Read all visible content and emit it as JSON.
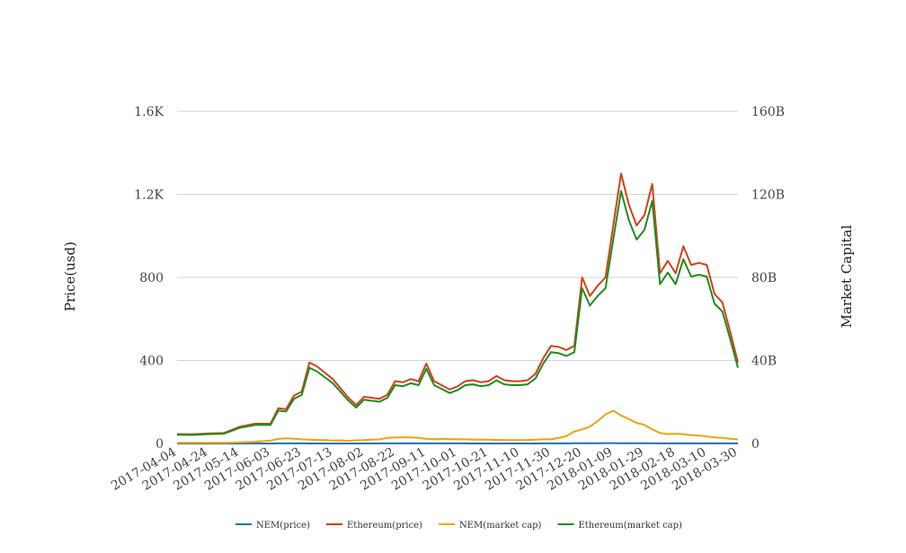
{
  "chart_data": {
    "type": "line",
    "xlabel": "",
    "ylabel": "Price(usd)",
    "y2label": "Market Capital",
    "ylim": [
      0,
      1600
    ],
    "y2lim": [
      0,
      160
    ],
    "grid": true,
    "legend_position": "bottom",
    "x_ticks": [
      "2017-04-04",
      "2017-04-24",
      "2017-05-14",
      "2017-06-03",
      "2017-06-23",
      "2017-07-13",
      "2017-08-02",
      "2017-08-22",
      "2017-09-11",
      "2017-10-01",
      "2017-10-21",
      "2017-11-10",
      "2017-11-30",
      "2017-12-20",
      "2018-01-09",
      "2018-01-29",
      "2018-02-18",
      "2018-03-10",
      "2018-03-30"
    ],
    "y_ticks": [
      "0",
      "400",
      "800",
      "1.2K",
      "1.6K"
    ],
    "y2_ticks": [
      "0",
      "40B",
      "80B",
      "120B",
      "160B"
    ],
    "x": [
      "2017-04-04",
      "2017-04-14",
      "2017-04-24",
      "2017-05-04",
      "2017-05-14",
      "2017-05-24",
      "2017-06-03",
      "2017-06-08",
      "2017-06-13",
      "2017-06-18",
      "2017-06-23",
      "2017-06-28",
      "2017-07-03",
      "2017-07-08",
      "2017-07-13",
      "2017-07-18",
      "2017-07-23",
      "2017-07-28",
      "2017-08-02",
      "2017-08-07",
      "2017-08-12",
      "2017-08-17",
      "2017-08-22",
      "2017-08-27",
      "2017-09-01",
      "2017-09-06",
      "2017-09-11",
      "2017-09-16",
      "2017-09-21",
      "2017-09-26",
      "2017-10-01",
      "2017-10-06",
      "2017-10-11",
      "2017-10-16",
      "2017-10-21",
      "2017-10-26",
      "2017-10-31",
      "2017-11-05",
      "2017-11-10",
      "2017-11-15",
      "2017-11-20",
      "2017-11-25",
      "2017-11-30",
      "2017-12-05",
      "2017-12-10",
      "2017-12-15",
      "2017-12-20",
      "2017-12-25",
      "2017-12-30",
      "2018-01-04",
      "2018-01-09",
      "2018-01-14",
      "2018-01-19",
      "2018-01-24",
      "2018-01-29",
      "2018-02-03",
      "2018-02-08",
      "2018-02-13",
      "2018-02-18",
      "2018-02-23",
      "2018-02-28",
      "2018-03-05",
      "2018-03-10",
      "2018-03-15",
      "2018-03-20",
      "2018-03-25",
      "2018-03-30"
    ],
    "series": [
      {
        "name": "NEM(price)",
        "color": "#1f6fbf",
        "axis": "left",
        "values": [
          0.03,
          0.03,
          0.03,
          0.03,
          0.05,
          0.08,
          0.15,
          0.25,
          0.3,
          0.28,
          0.22,
          0.2,
          0.19,
          0.18,
          0.15,
          0.16,
          0.14,
          0.17,
          0.18,
          0.2,
          0.22,
          0.3,
          0.32,
          0.34,
          0.33,
          0.3,
          0.25,
          0.23,
          0.25,
          0.24,
          0.22,
          0.22,
          0.21,
          0.2,
          0.2,
          0.19,
          0.19,
          0.18,
          0.18,
          0.19,
          0.2,
          0.22,
          0.22,
          0.3,
          0.4,
          0.65,
          0.75,
          0.9,
          1.2,
          1.55,
          1.75,
          1.5,
          1.3,
          1.1,
          1.0,
          0.75,
          0.55,
          0.5,
          0.52,
          0.5,
          0.45,
          0.42,
          0.38,
          0.32,
          0.3,
          0.26,
          0.22
        ]
      },
      {
        "name": "Ethereum(price)",
        "color": "#d43f1a",
        "axis": "left",
        "values": [
          45,
          44,
          48,
          50,
          80,
          95,
          95,
          170,
          165,
          230,
          250,
          390,
          370,
          340,
          310,
          265,
          220,
          185,
          225,
          220,
          215,
          235,
          300,
          295,
          310,
          300,
          385,
          300,
          280,
          260,
          275,
          300,
          305,
          295,
          300,
          325,
          305,
          300,
          300,
          305,
          335,
          410,
          470,
          465,
          450,
          470,
          800,
          710,
          760,
          800,
          1050,
          1300,
          1150,
          1050,
          1100,
          1250,
          820,
          880,
          820,
          950,
          860,
          870,
          860,
          720,
          680,
          540,
          390
        ]
      },
      {
        "name": "NEM(market cap)",
        "color": "#f0a30a",
        "axis": "right",
        "values": [
          0.3,
          0.3,
          0.3,
          0.3,
          0.5,
          0.8,
          1.4,
          2.2,
          2.5,
          2.3,
          2.0,
          1.8,
          1.7,
          1.6,
          1.4,
          1.5,
          1.3,
          1.5,
          1.6,
          1.8,
          2.0,
          2.7,
          2.9,
          3.0,
          2.9,
          2.7,
          2.2,
          2.0,
          2.2,
          2.1,
          2.0,
          2.0,
          1.9,
          1.8,
          1.8,
          1.7,
          1.7,
          1.6,
          1.6,
          1.7,
          1.8,
          2.0,
          2.0,
          2.7,
          3.6,
          5.8,
          6.8,
          8.1,
          10.8,
          14.0,
          15.8,
          13.5,
          11.7,
          9.9,
          9.0,
          6.8,
          5.0,
          4.5,
          4.7,
          4.5,
          4.0,
          3.8,
          3.4,
          2.9,
          2.7,
          2.3,
          2.0
        ]
      },
      {
        "name": "Ethereum(market cap)",
        "color": "#1e8c1e",
        "axis": "right",
        "values": [
          4.2,
          4.1,
          4.5,
          4.7,
          7.5,
          8.9,
          8.9,
          15.9,
          15.4,
          21.5,
          23.4,
          36.5,
          34.6,
          31.8,
          29.0,
          24.8,
          20.6,
          17.3,
          21.1,
          20.6,
          20.1,
          22.0,
          28.1,
          27.6,
          29.0,
          28.1,
          36.0,
          28.1,
          26.2,
          24.3,
          25.7,
          28.1,
          28.5,
          27.6,
          28.1,
          30.4,
          28.5,
          28.1,
          28.1,
          28.5,
          31.3,
          38.4,
          44.0,
          43.5,
          42.1,
          44.0,
          74.8,
          66.4,
          71.1,
          74.8,
          98.2,
          121.6,
          107.5,
          98.2,
          102.9,
          116.9,
          76.7,
          82.3,
          76.7,
          88.8,
          80.4,
          81.3,
          80.4,
          67.3,
          63.6,
          50.5,
          36.5
        ]
      }
    ]
  }
}
